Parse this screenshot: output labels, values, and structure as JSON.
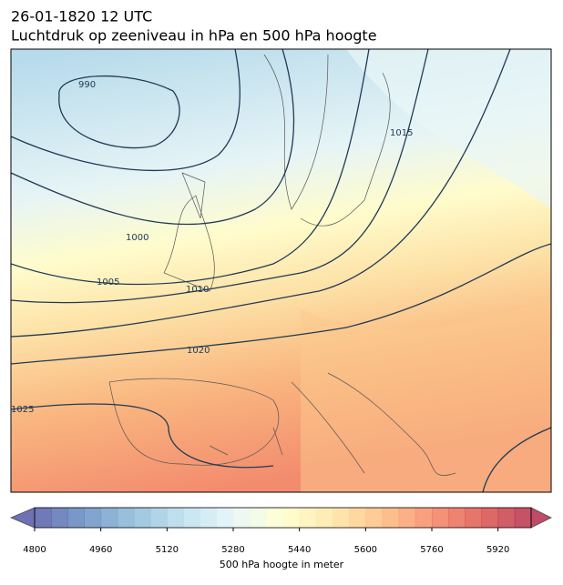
{
  "header": {
    "date": "26-01-1820 12 UTC",
    "title": "Luchtdruk op zeeniveau in hPa en 500 hPa hoogte"
  },
  "map": {
    "isobar_labels": [
      "990",
      "1000",
      "1005",
      "1010",
      "1015",
      "1020",
      "1025"
    ]
  },
  "colorbar": {
    "label": "500 hPa hoogte in meter",
    "range": [
      4800,
      6000
    ],
    "step": 40,
    "ticks": [
      4800,
      4960,
      5120,
      5280,
      5440,
      5600,
      5760,
      5920
    ],
    "colors": [
      "#313695",
      "#4575b4",
      "#74add1",
      "#abd9e9",
      "#e0f3f8",
      "#ffffbf",
      "#fee090",
      "#fdae61",
      "#f46d43",
      "#d73027",
      "#a50026"
    ]
  }
}
